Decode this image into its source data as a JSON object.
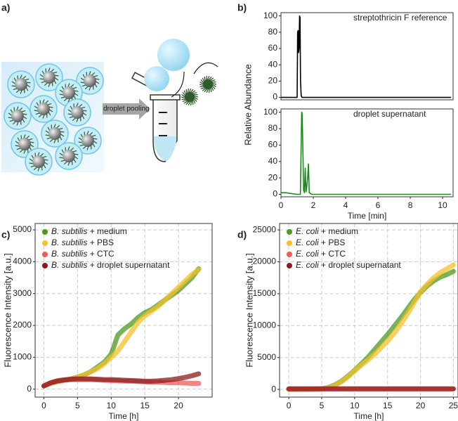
{
  "diagram": {
    "panel_label": "a)",
    "step": "droplet pooling"
  },
  "chart_data": [
    {
      "type": "line",
      "panel_label": "b)",
      "ylabel": "Relative Abundance",
      "annotation": "streptothricin F reference",
      "x": [
        0,
        0.5,
        0.9,
        1.0,
        1.03,
        1.06,
        1.09,
        1.12,
        1.15,
        1.18,
        1.21,
        1.25,
        1.3,
        1.5,
        2,
        4,
        6,
        8,
        10,
        10.5
      ],
      "series": [
        {
          "color": "#000000",
          "values": [
            0,
            0,
            0,
            0,
            80,
            82,
            55,
            60,
            100,
            98,
            20,
            2,
            0,
            0,
            0,
            0,
            0,
            0,
            0,
            0
          ]
        }
      ],
      "xlim": [
        0,
        10.65
      ],
      "ylim": [
        -3,
        104
      ],
      "yticks": [
        0,
        20,
        40,
        60,
        80,
        100
      ],
      "grid": false
    },
    {
      "type": "line",
      "annotation": "droplet supernatant",
      "xlabel": "Time [min]",
      "x": [
        0,
        0.3,
        0.6,
        1.0,
        1.2,
        1.25,
        1.28,
        1.31,
        1.34,
        1.4,
        1.45,
        1.5,
        1.55,
        1.6,
        1.65,
        1.7,
        1.75,
        1.9,
        2.5,
        4,
        6,
        8,
        10,
        10.5
      ],
      "series": [
        {
          "color": "#1a8a1a",
          "values": [
            2,
            2,
            1,
            0,
            0,
            60,
            100,
            98,
            70,
            5,
            2,
            32,
            3,
            10,
            20,
            37,
            2,
            0,
            0,
            0,
            0,
            0,
            0,
            0
          ]
        }
      ],
      "xlim": [
        0,
        10.65
      ],
      "ylim": [
        -3,
        104
      ],
      "xticks": [
        0,
        2,
        4,
        6,
        8,
        10
      ],
      "yticks": [
        0,
        20,
        40,
        60,
        80,
        100
      ],
      "grid": false
    },
    {
      "type": "line",
      "panel_label": "c)",
      "xlabel": "Time [h]",
      "ylabel": "Fluorescence Intensity [a.u.]",
      "legend": "upper left",
      "grid": true,
      "x": [
        0,
        1,
        2,
        3,
        4,
        5,
        6,
        7,
        8,
        9,
        10,
        11,
        12,
        13,
        14,
        15,
        16,
        17,
        18,
        19,
        20,
        21,
        22,
        23
      ],
      "series": [
        {
          "name": "B. subtilis + medium",
          "color": "#4e9a1e",
          "values": [
            100,
            180,
            240,
            280,
            320,
            380,
            450,
            550,
            700,
            850,
            1100,
            1700,
            1900,
            2050,
            2250,
            2400,
            2500,
            2650,
            2800,
            2950,
            3100,
            3300,
            3500,
            3780
          ]
        },
        {
          "name": "B. subtilis + PBS",
          "color": "#f5c02a",
          "values": [
            100,
            180,
            250,
            280,
            320,
            380,
            450,
            550,
            650,
            800,
            1000,
            1200,
            1500,
            1800,
            2100,
            2300,
            2450,
            2600,
            2800,
            3000,
            3200,
            3400,
            3600,
            3750
          ]
        },
        {
          "name": "B. subtilis + CTC",
          "color": "#f05a5a",
          "values": [
            100,
            200,
            250,
            280,
            300,
            300,
            300,
            300,
            290,
            280,
            270,
            260,
            250,
            250,
            240,
            230,
            220,
            220,
            210,
            200,
            200,
            190,
            180,
            180
          ]
        },
        {
          "name": "B. subtilis + droplet supernatant",
          "color": "#8b1c1c",
          "values": [
            100,
            200,
            260,
            290,
            310,
            320,
            320,
            320,
            310,
            300,
            300,
            290,
            280,
            270,
            260,
            250,
            250,
            260,
            280,
            300,
            330,
            370,
            420,
            480
          ]
        }
      ],
      "xlim": [
        -1.3,
        25
      ],
      "ylim": [
        -250,
        5200
      ],
      "xticks": [
        0,
        5,
        10,
        15,
        20
      ],
      "yticks": [
        0,
        1000,
        2000,
        3000,
        4000,
        5000
      ]
    },
    {
      "type": "line",
      "panel_label": "d)",
      "xlabel": "Time [h]",
      "ylabel": "Fluorescence Intensity [a.u.]",
      "legend": "upper left",
      "grid": true,
      "x": [
        0,
        1,
        2,
        3,
        4,
        5,
        6,
        7,
        8,
        9,
        10,
        11,
        12,
        13,
        14,
        15,
        16,
        17,
        18,
        19,
        20,
        21,
        22,
        23,
        24,
        25
      ],
      "series": [
        {
          "name": "E. coli + medium",
          "color": "#4e9a1e",
          "values": [
            0,
            0,
            10,
            30,
            60,
            100,
            300,
            700,
            1300,
            2100,
            3000,
            4000,
            5000,
            6200,
            7400,
            8600,
            9900,
            11200,
            12600,
            14000,
            15200,
            16200,
            17000,
            17600,
            18000,
            18500
          ]
        },
        {
          "name": "E. coli + PBS",
          "color": "#f5c02a",
          "values": [
            0,
            0,
            10,
            20,
            40,
            80,
            200,
            600,
            1200,
            2000,
            2900,
            3800,
            4600,
            5500,
            6500,
            7600,
            8800,
            10200,
            11800,
            13500,
            15300,
            16500,
            17500,
            18300,
            18900,
            19500
          ]
        },
        {
          "name": "E. coli + CTC",
          "color": "#f05a5a",
          "values": [
            100,
            100,
            100,
            100,
            100,
            100,
            100,
            100,
            100,
            100,
            100,
            100,
            100,
            100,
            100,
            100,
            100,
            100,
            100,
            100,
            100,
            100,
            100,
            100,
            100,
            100
          ]
        },
        {
          "name": "E. coli + droplet supernatant",
          "color": "#8b1c1c",
          "values": [
            100,
            100,
            100,
            100,
            100,
            100,
            100,
            100,
            100,
            100,
            100,
            100,
            100,
            100,
            100,
            100,
            100,
            100,
            100,
            100,
            100,
            100,
            100,
            100,
            100,
            100
          ]
        }
      ],
      "xlim": [
        -1.4,
        25.7
      ],
      "ylim": [
        -1200,
        26000
      ],
      "xticks": [
        0,
        5,
        10,
        15,
        20,
        25
      ],
      "yticks": [
        0,
        5000,
        10000,
        15000,
        20000,
        25000
      ]
    }
  ]
}
